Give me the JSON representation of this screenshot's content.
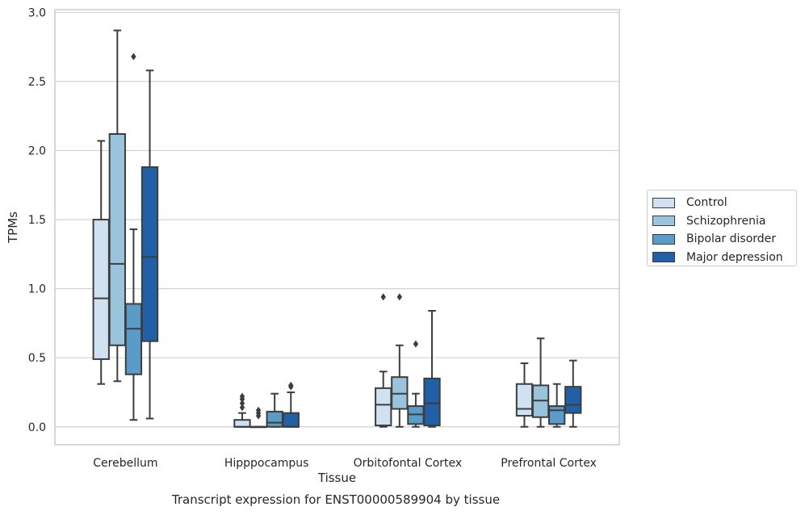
{
  "caption": "Transcript expression for ENST00000589904 by tissue",
  "chart_data": {
    "type": "box",
    "xlabel": "Tissue",
    "ylabel": "TPMs",
    "ylim": [
      -0.13,
      3.02
    ],
    "yticks": [
      "0.0",
      "0.5",
      "1.0",
      "1.5",
      "2.0",
      "2.5",
      "3.0"
    ],
    "ytick_values": [
      0,
      0.5,
      1.0,
      1.5,
      2.0,
      2.5,
      3.0
    ],
    "grid": true,
    "legend_placement": "right",
    "categories": [
      "Cerebellum",
      "Hipppocampus",
      "Orbitofontal Cortex",
      "Prefrontal Cortex"
    ],
    "series": [
      {
        "name": "Control",
        "color": "#d0e1f2",
        "boxes": [
          {
            "whisker_low": 0.31,
            "q1": 0.49,
            "median": 0.93,
            "q3": 1.5,
            "whisker_high": 2.07,
            "outliers": []
          },
          {
            "whisker_low": 0.0,
            "q1": 0.0,
            "median": 0.0,
            "q3": 0.05,
            "whisker_high": 0.1,
            "outliers": [
              0.14,
              0.17,
              0.2,
              0.22
            ]
          },
          {
            "whisker_low": 0.0,
            "q1": 0.01,
            "median": 0.16,
            "q3": 0.28,
            "whisker_high": 0.4,
            "outliers": [
              0.94
            ]
          },
          {
            "whisker_low": 0.0,
            "q1": 0.08,
            "median": 0.13,
            "q3": 0.31,
            "whisker_high": 0.46,
            "outliers": []
          }
        ]
      },
      {
        "name": "Schizophrenia",
        "color": "#9ac3dc",
        "boxes": [
          {
            "whisker_low": 0.33,
            "q1": 0.59,
            "median": 1.18,
            "q3": 2.12,
            "whisker_high": 2.87,
            "outliers": []
          },
          {
            "whisker_low": 0.0,
            "q1": 0.0,
            "median": 0.0,
            "q3": 0.0,
            "whisker_high": 0.0,
            "outliers": [
              0.08,
              0.1,
              0.12
            ]
          },
          {
            "whisker_low": 0.0,
            "q1": 0.13,
            "median": 0.24,
            "q3": 0.36,
            "whisker_high": 0.59,
            "outliers": [
              0.94
            ]
          },
          {
            "whisker_low": 0.0,
            "q1": 0.07,
            "median": 0.19,
            "q3": 0.3,
            "whisker_high": 0.64,
            "outliers": []
          }
        ]
      },
      {
        "name": "Bipolar disorder",
        "color": "#5a9bc8",
        "boxes": [
          {
            "whisker_low": 0.05,
            "q1": 0.38,
            "median": 0.71,
            "q3": 0.89,
            "whisker_high": 1.43,
            "outliers": [
              2.68
            ]
          },
          {
            "whisker_low": 0.0,
            "q1": 0.0,
            "median": 0.03,
            "q3": 0.11,
            "whisker_high": 0.24,
            "outliers": []
          },
          {
            "whisker_low": 0.0,
            "q1": 0.02,
            "median": 0.09,
            "q3": 0.15,
            "whisker_high": 0.24,
            "outliers": [
              0.6
            ]
          },
          {
            "whisker_low": 0.0,
            "q1": 0.02,
            "median": 0.12,
            "q3": 0.15,
            "whisker_high": 0.31,
            "outliers": []
          }
        ]
      },
      {
        "name": "Major depression",
        "color": "#2160a7",
        "boxes": [
          {
            "whisker_low": 0.06,
            "q1": 0.62,
            "median": 1.23,
            "q3": 1.88,
            "whisker_high": 2.58,
            "outliers": []
          },
          {
            "whisker_low": 0.0,
            "q1": 0.0,
            "median": 0.0,
            "q3": 0.1,
            "whisker_high": 0.25,
            "outliers": [
              0.29,
              0.3
            ]
          },
          {
            "whisker_low": 0.0,
            "q1": 0.01,
            "median": 0.17,
            "q3": 0.35,
            "whisker_high": 0.84,
            "outliers": []
          },
          {
            "whisker_low": 0.0,
            "q1": 0.1,
            "median": 0.16,
            "q3": 0.29,
            "whisker_high": 0.48,
            "outliers": []
          }
        ]
      }
    ]
  }
}
